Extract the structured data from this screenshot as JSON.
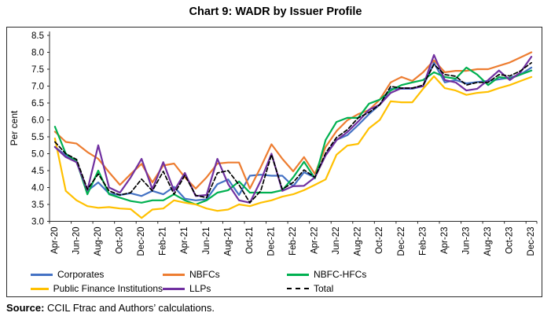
{
  "title": "Chart 9: WADR by Issuer Profile",
  "source": {
    "label": "Source:",
    "text": " CCIL Ftrac and Authors’ calculations."
  },
  "chart_data": {
    "type": "line",
    "title": "Chart 9: WADR by Issuer Profile",
    "xlabel": "",
    "ylabel": "Per cent",
    "ylim": [
      3.0,
      8.5
    ],
    "y_ticks": [
      "8.5",
      "8.0",
      "7.5",
      "7.0",
      "6.5",
      "6.0",
      "5.5",
      "5.0",
      "4.5",
      "4.0",
      "3.5",
      "3.0"
    ],
    "x_label_interval": 2,
    "x_tick_labels": [
      "Apr-20",
      "Jun-20",
      "Aug-20",
      "Oct-20",
      "Dec-20",
      "Feb-21",
      "Apr-21",
      "Jun-21",
      "Aug-21",
      "Oct-21",
      "Dec-21",
      "Feb-22",
      "Apr-22",
      "Jun-22",
      "Aug-22",
      "Oct-22",
      "Dec-22",
      "Feb-23",
      "Apr-23",
      "Jun-23",
      "Aug-23",
      "Oct-23",
      "Dec-23"
    ],
    "x_monthly": [
      "Apr-20",
      "May-20",
      "Jun-20",
      "Jul-20",
      "Aug-20",
      "Sep-20",
      "Oct-20",
      "Nov-20",
      "Dec-20",
      "Jan-21",
      "Feb-21",
      "Mar-21",
      "Apr-21",
      "May-21",
      "Jun-21",
      "Jul-21",
      "Aug-21",
      "Sep-21",
      "Oct-21",
      "Nov-21",
      "Dec-21",
      "Jan-22",
      "Feb-22",
      "Mar-22",
      "Apr-22",
      "May-22",
      "Jun-22",
      "Jul-22",
      "Aug-22",
      "Sep-22",
      "Oct-22",
      "Nov-22",
      "Dec-22",
      "Jan-23",
      "Feb-23",
      "Mar-23",
      "Apr-23",
      "May-23",
      "Jun-23",
      "Jul-23",
      "Aug-23",
      "Sep-23",
      "Oct-23",
      "Nov-23",
      "Dec-23"
    ],
    "grid": false,
    "legend_position": "bottom",
    "series": [
      {
        "name": "Corporates",
        "color": "#4472C4",
        "dash": false,
        "values": [
          5.2,
          4.95,
          4.75,
          3.9,
          4.15,
          3.82,
          3.78,
          3.83,
          3.75,
          3.9,
          3.8,
          4.02,
          3.67,
          3.62,
          3.65,
          4.1,
          4.24,
          3.78,
          4.35,
          4.38,
          4.35,
          4.35,
          4.04,
          4.45,
          4.3,
          4.97,
          5.41,
          5.55,
          5.85,
          6.17,
          6.45,
          6.92,
          6.92,
          6.92,
          7.0,
          7.69,
          7.11,
          7.18,
          7.08,
          7.12,
          7.15,
          7.2,
          7.25,
          7.35,
          7.55
        ]
      },
      {
        "name": "NBFCs",
        "color": "#ED7D31",
        "dash": false,
        "values": [
          5.65,
          5.35,
          5.3,
          5.05,
          4.85,
          4.45,
          4.08,
          4.4,
          4.7,
          4.15,
          4.65,
          4.71,
          4.3,
          3.97,
          4.3,
          4.71,
          4.74,
          4.74,
          3.97,
          4.6,
          5.28,
          4.85,
          4.48,
          4.9,
          4.4,
          5.2,
          5.67,
          5.99,
          6.17,
          6.29,
          6.6,
          7.11,
          7.27,
          7.15,
          7.41,
          7.76,
          7.41,
          7.45,
          7.45,
          7.5,
          7.5,
          7.6,
          7.7,
          7.85,
          8.0
        ]
      },
      {
        "name": "NBFC-HFCs",
        "color": "#00B050",
        "dash": false,
        "values": [
          5.8,
          5.0,
          4.78,
          3.8,
          4.5,
          3.8,
          3.7,
          3.6,
          3.55,
          3.62,
          3.62,
          3.8,
          3.62,
          3.5,
          3.62,
          3.85,
          3.92,
          4.18,
          3.85,
          3.85,
          3.85,
          3.92,
          4.3,
          4.76,
          4.27,
          5.41,
          5.94,
          6.06,
          6.06,
          6.48,
          6.6,
          6.87,
          7.03,
          7.11,
          7.18,
          7.41,
          7.27,
          7.22,
          7.55,
          7.34,
          7.03,
          7.27,
          7.22,
          7.34,
          7.46
        ]
      },
      {
        "name": "Public Finance Institutions",
        "color": "#FFC000",
        "dash": false,
        "values": [
          5.45,
          3.9,
          3.62,
          3.45,
          3.4,
          3.42,
          3.38,
          3.36,
          3.1,
          3.35,
          3.38,
          3.62,
          3.55,
          3.5,
          3.38,
          3.31,
          3.35,
          3.5,
          3.45,
          3.55,
          3.62,
          3.73,
          3.8,
          3.92,
          4.08,
          4.24,
          4.97,
          5.24,
          5.29,
          5.75,
          6.0,
          6.55,
          6.52,
          6.52,
          6.92,
          7.29,
          6.94,
          6.87,
          6.74,
          6.8,
          6.83,
          6.94,
          7.03,
          7.15,
          7.27
        ]
      },
      {
        "name": "LLPs",
        "color": "#7030A0",
        "dash": false,
        "values": [
          5.2,
          4.9,
          4.75,
          3.92,
          5.25,
          4.0,
          3.85,
          4.3,
          4.85,
          3.95,
          4.75,
          3.9,
          4.43,
          3.75,
          3.78,
          4.85,
          4.1,
          3.62,
          3.55,
          4.2,
          5.0,
          3.9,
          4.04,
          4.05,
          4.3,
          4.95,
          5.4,
          5.64,
          5.95,
          6.3,
          6.45,
          6.8,
          6.94,
          6.94,
          7.0,
          7.92,
          7.18,
          7.11,
          6.87,
          6.92,
          7.18,
          7.46,
          7.18,
          7.41,
          7.87
        ]
      },
      {
        "name": "Total",
        "color": "#000000",
        "dash": true,
        "values": [
          5.35,
          5.0,
          4.83,
          3.95,
          4.4,
          3.9,
          3.78,
          3.85,
          4.25,
          3.9,
          4.48,
          3.8,
          4.36,
          3.77,
          3.7,
          4.43,
          4.5,
          4.08,
          3.55,
          3.9,
          4.97,
          3.95,
          4.15,
          4.52,
          4.3,
          5.02,
          5.48,
          5.71,
          6.06,
          6.22,
          6.45,
          6.99,
          6.94,
          6.94,
          7.03,
          7.64,
          7.34,
          7.29,
          7.03,
          7.11,
          7.11,
          7.34,
          7.3,
          7.45,
          7.69
        ]
      }
    ]
  }
}
